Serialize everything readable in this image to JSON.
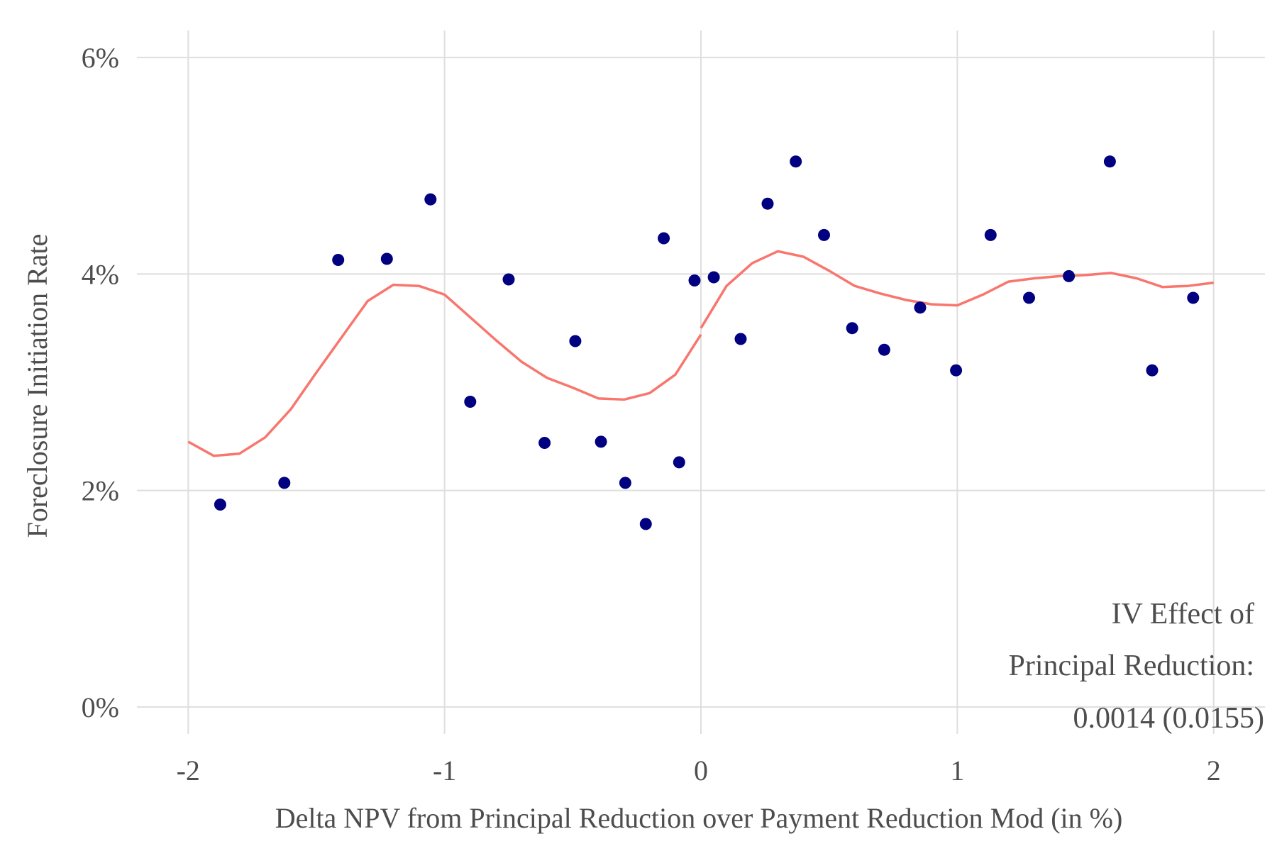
{
  "chart_data": {
    "type": "scatter",
    "title": "",
    "xlabel": "Delta NPV from Principal Reduction over Payment Reduction Mod (in %)",
    "ylabel": "Foreclosure Initiation Rate",
    "xlim": [
      -2.2,
      2.2
    ],
    "ylim": [
      -0.0025,
      0.0625
    ],
    "x_ticks": [
      -2,
      -1,
      0,
      1,
      2
    ],
    "x_tick_labels": [
      "-2",
      "-1",
      "0",
      "1",
      "2"
    ],
    "y_ticks": [
      0,
      0.02,
      0.04,
      0.06
    ],
    "y_tick_labels": [
      "0%",
      "2%",
      "4%",
      "6%"
    ],
    "grid": true,
    "legend": "none",
    "colors": {
      "points": "#000080",
      "fit_line": "#F8766D",
      "grid": "#dedede",
      "text": "#4d4d4d"
    },
    "series": [
      {
        "kind": "points",
        "x": [
          -1.875,
          -1.625,
          -1.415,
          -1.225,
          -1.055,
          -0.9,
          -0.75,
          -0.61,
          -0.49,
          -0.39,
          -0.295,
          -0.215,
          -0.145,
          -0.085,
          -0.025,
          0.05,
          0.155,
          0.26,
          0.37,
          0.48,
          0.59,
          0.715,
          0.855,
          0.995,
          1.13,
          1.28,
          1.435,
          1.595,
          1.76,
          1.92
        ],
        "y": [
          0.0187,
          0.0207,
          0.0413,
          0.0414,
          0.0469,
          0.0282,
          0.0395,
          0.0244,
          0.0338,
          0.0245,
          0.0207,
          0.0169,
          0.0433,
          0.0226,
          0.0394,
          0.0397,
          0.034,
          0.0465,
          0.0504,
          0.0436,
          0.035,
          0.033,
          0.0369,
          0.0311,
          0.0436,
          0.0378,
          0.0398,
          0.0504,
          0.0311,
          0.0378
        ]
      },
      {
        "kind": "line",
        "segment": "left",
        "x": [
          -2.0,
          -1.9,
          -1.8,
          -1.7,
          -1.6,
          -1.5,
          -1.4,
          -1.3,
          -1.2,
          -1.1,
          -1.0,
          -0.9,
          -0.8,
          -0.7,
          -0.6,
          -0.5,
          -0.4,
          -0.3,
          -0.2,
          -0.1,
          0.0
        ],
        "y": [
          0.0245,
          0.0232,
          0.0234,
          0.0249,
          0.0275,
          0.0309,
          0.0342,
          0.0375,
          0.039,
          0.0389,
          0.0381,
          0.036,
          0.0339,
          0.0319,
          0.0304,
          0.0295,
          0.0285,
          0.0284,
          0.029,
          0.0307,
          0.0344
        ]
      },
      {
        "kind": "line",
        "segment": "right",
        "x": [
          0.0,
          0.1,
          0.2,
          0.3,
          0.4,
          0.5,
          0.6,
          0.7,
          0.8,
          0.9,
          1.0,
          1.1,
          1.2,
          1.3,
          1.4,
          1.5,
          1.6,
          1.7,
          1.8,
          1.9,
          2.0
        ],
        "y": [
          0.035,
          0.0389,
          0.041,
          0.0421,
          0.0416,
          0.0403,
          0.0389,
          0.0382,
          0.0376,
          0.0372,
          0.0371,
          0.0381,
          0.0393,
          0.0396,
          0.0398,
          0.0399,
          0.0401,
          0.0396,
          0.0388,
          0.0389,
          0.0392
        ]
      }
    ],
    "annotation": {
      "lines": [
        "IV Effect of",
        "Principal Reduction:",
        "0.0014 (0.0155)"
      ]
    }
  }
}
